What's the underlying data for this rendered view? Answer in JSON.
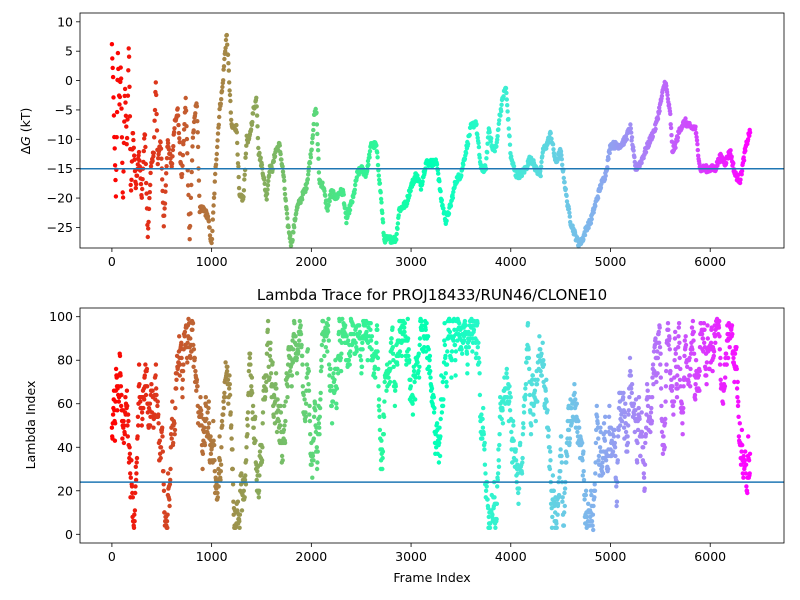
{
  "chart_data": [
    {
      "type": "scatter",
      "title": "",
      "xlabel": "",
      "ylabel": "ΔG (kT)",
      "ylabel_main": "Δ",
      "ylabel_italic": "G",
      "ylabel_unit": " (kT)",
      "xlim": [
        -320,
        6740
      ],
      "ylim": [
        -28.5,
        11.5
      ],
      "xticks": [
        0,
        1000,
        2000,
        3000,
        4000,
        5000,
        6000
      ],
      "yticks": [
        10,
        5,
        0,
        -5,
        -10,
        -15,
        -20,
        -25
      ],
      "hline": -15,
      "hline_color": "#1f77b4",
      "colormap": "rainbow (red at frame 0 → violet at last frame)",
      "grid": false,
      "frames": 6400,
      "segments": [
        [
          0,
          6
        ],
        [
          12,
          0
        ],
        [
          25,
          -10
        ],
        [
          40,
          -20
        ],
        [
          60,
          5
        ],
        [
          75,
          -5
        ],
        [
          90,
          3
        ],
        [
          110,
          -22
        ],
        [
          130,
          0
        ],
        [
          150,
          -12
        ],
        [
          170,
          7
        ],
        [
          190,
          -20
        ],
        [
          210,
          -8
        ],
        [
          240,
          -18
        ],
        [
          270,
          -12
        ],
        [
          300,
          -20
        ],
        [
          330,
          -8
        ],
        [
          360,
          -27
        ],
        [
          390,
          -15
        ],
        [
          420,
          -12
        ],
        [
          440,
          0
        ],
        [
          460,
          -14
        ],
        [
          490,
          -10
        ],
        [
          520,
          -25
        ],
        [
          560,
          -10
        ],
        [
          600,
          -15
        ],
        [
          630,
          -7
        ],
        [
          660,
          -5
        ],
        [
          700,
          -17
        ],
        [
          740,
          -3
        ],
        [
          780,
          -27
        ],
        [
          810,
          -10
        ],
        [
          850,
          -3
        ],
        [
          880,
          -22
        ],
        [
          920,
          -22
        ],
        [
          960,
          -23
        ],
        [
          1000,
          -28
        ],
        [
          1040,
          -15
        ],
        [
          1080,
          -5
        ],
        [
          1110,
          -1
        ],
        [
          1130,
          4
        ],
        [
          1150,
          8
        ],
        [
          1170,
          2
        ],
        [
          1200,
          -8
        ],
        [
          1250,
          -8
        ],
        [
          1280,
          -20
        ],
        [
          1320,
          -20
        ],
        [
          1350,
          -10
        ],
        [
          1380,
          -10
        ],
        [
          1420,
          -5
        ],
        [
          1450,
          -3
        ],
        [
          1470,
          -12
        ],
        [
          1510,
          -15
        ],
        [
          1550,
          -20
        ],
        [
          1580,
          -15
        ],
        [
          1610,
          -15
        ],
        [
          1640,
          -12
        ],
        [
          1680,
          -11
        ],
        [
          1720,
          -16
        ],
        [
          1760,
          -24
        ],
        [
          1800,
          -28
        ],
        [
          1850,
          -22
        ],
        [
          1900,
          -20
        ],
        [
          1950,
          -18
        ],
        [
          2000,
          -12
        ],
        [
          2030,
          -6
        ],
        [
          2050,
          -5
        ],
        [
          2080,
          -17
        ],
        [
          2120,
          -18
        ],
        [
          2160,
          -22
        ],
        [
          2200,
          -19
        ],
        [
          2250,
          -20
        ],
        [
          2280,
          -19
        ],
        [
          2320,
          -19
        ],
        [
          2350,
          -24
        ],
        [
          2380,
          -22
        ],
        [
          2420,
          -20
        ],
        [
          2460,
          -16
        ],
        [
          2500,
          -15
        ],
        [
          2550,
          -16
        ],
        [
          2600,
          -11
        ],
        [
          2650,
          -11
        ],
        [
          2700,
          -20
        ],
        [
          2730,
          -27
        ],
        [
          2800,
          -27
        ],
        [
          2850,
          -27
        ],
        [
          2880,
          -22
        ],
        [
          2950,
          -21
        ],
        [
          3000,
          -18
        ],
        [
          3050,
          -16
        ],
        [
          3100,
          -18
        ],
        [
          3150,
          -14
        ],
        [
          3200,
          -14
        ],
        [
          3260,
          -14
        ],
        [
          3300,
          -20
        ],
        [
          3350,
          -24
        ],
        [
          3400,
          -21
        ],
        [
          3450,
          -17
        ],
        [
          3500,
          -16
        ],
        [
          3550,
          -12
        ],
        [
          3600,
          -8
        ],
        [
          3650,
          -7
        ],
        [
          3700,
          -15
        ],
        [
          3750,
          -15
        ],
        [
          3780,
          -8
        ],
        [
          3820,
          -12
        ],
        [
          3860,
          -11
        ],
        [
          3880,
          -7
        ],
        [
          3920,
          -3
        ],
        [
          3950,
          -1
        ],
        [
          3980,
          -8
        ],
        [
          4000,
          -13
        ],
        [
          4050,
          -16
        ],
        [
          4100,
          -16
        ],
        [
          4150,
          -15
        ],
        [
          4200,
          -13
        ],
        [
          4250,
          -15
        ],
        [
          4300,
          -16
        ],
        [
          4320,
          -12
        ],
        [
          4360,
          -11
        ],
        [
          4400,
          -9
        ],
        [
          4450,
          -14
        ],
        [
          4500,
          -12
        ],
        [
          4560,
          -20
        ],
        [
          4600,
          -24
        ],
        [
          4640,
          -26
        ],
        [
          4680,
          -28
        ],
        [
          4720,
          -27
        ],
        [
          4760,
          -25
        ],
        [
          4800,
          -24
        ],
        [
          4850,
          -21
        ],
        [
          4900,
          -18
        ],
        [
          4950,
          -16
        ],
        [
          5000,
          -11
        ],
        [
          5050,
          -11
        ],
        [
          5100,
          -11
        ],
        [
          5150,
          -10
        ],
        [
          5200,
          -8
        ],
        [
          5250,
          -15
        ],
        [
          5300,
          -14
        ],
        [
          5350,
          -12
        ],
        [
          5400,
          -10
        ],
        [
          5450,
          -8
        ],
        [
          5500,
          -4
        ],
        [
          5550,
          0
        ],
        [
          5600,
          -6
        ],
        [
          5620,
          -12
        ],
        [
          5650,
          -11
        ],
        [
          5700,
          -8
        ],
        [
          5750,
          -7
        ],
        [
          5800,
          -8
        ],
        [
          5850,
          -8
        ],
        [
          5900,
          -15
        ],
        [
          5950,
          -15
        ],
        [
          6000,
          -15
        ],
        [
          6050,
          -15
        ],
        [
          6100,
          -13
        ],
        [
          6150,
          -14
        ],
        [
          6200,
          -12
        ],
        [
          6250,
          -16
        ],
        [
          6300,
          -17
        ],
        [
          6350,
          -12
        ],
        [
          6390,
          -9
        ]
      ]
    },
    {
      "type": "scatter",
      "title": "Lambda Trace for PROJ18433/RUN46/CLONE10",
      "xlabel": "Frame Index",
      "ylabel": "Lambda Index",
      "xlim": [
        -320,
        6740
      ],
      "ylim": [
        -4,
        104
      ],
      "xticks": [
        0,
        1000,
        2000,
        3000,
        4000,
        5000,
        6000
      ],
      "yticks": [
        0,
        20,
        40,
        60,
        80,
        100
      ],
      "hline": 24,
      "hline_color": "#1f77b4",
      "colormap": "rainbow (red at frame 0 → violet at last frame)",
      "grid": false,
      "frames": 6400,
      "lambda_range": [
        2,
        99
      ]
    }
  ]
}
